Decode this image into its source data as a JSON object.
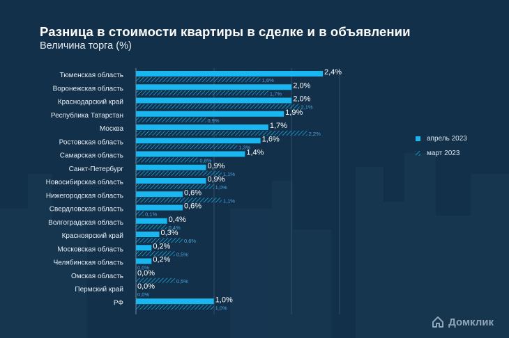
{
  "title": "Разница в стоимости квартиры в сделке и в объявлении",
  "subtitle": "Величина торга (%)",
  "logo_text": "Домклик",
  "colors": {
    "background": "#123049",
    "april": "#1ab6ef",
    "march": "#1ab6ef",
    "text": "#ffffff",
    "march_label": "#4fa3dc"
  },
  "legend": {
    "april": "апрель 2023",
    "march": "март 2023"
  },
  "chart_data": {
    "type": "bar",
    "orientation": "horizontal",
    "categories": [
      "Тюменская область",
      "Воронежская область",
      "Краснодарский край",
      "Республика Татарстан",
      "Москва",
      "Ростовская область",
      "Самарская область",
      "Санкт-Петербург",
      "Новосибирская область",
      "Нижегородская область",
      "Свердловская область",
      "Волгоградская область",
      "Красноярский край",
      "Московская область",
      "Челябинская область",
      "Омская область",
      "Пермский край",
      "РФ"
    ],
    "series": [
      {
        "name": "апрель 2023",
        "values": [
          2.4,
          2.0,
          2.0,
          1.9,
          1.7,
          1.6,
          1.4,
          0.9,
          0.9,
          0.6,
          0.6,
          0.4,
          0.3,
          0.2,
          0.2,
          0.0,
          0.0,
          1.0
        ],
        "labels": [
          "2,4%",
          "2,0%",
          "2,0%",
          "1,9%",
          "1,7%",
          "1,6%",
          "1,4%",
          "0,9%",
          "0,9%",
          "0,6%",
          "0,6%",
          "0,4%",
          "0,3%",
          "0,2%",
          "0,2%",
          "0,0%",
          "0,0%",
          "1,0%"
        ]
      },
      {
        "name": "март 2023",
        "values": [
          1.6,
          1.7,
          2.1,
          0.9,
          2.2,
          1.3,
          0.8,
          1.1,
          1.0,
          1.1,
          0.1,
          0.4,
          0.6,
          0.5,
          0.0,
          0.5,
          0.0,
          1.0
        ],
        "labels": [
          "1,6%",
          "1,7%",
          "2,1%",
          "0,9%",
          "2,2%",
          "1,3%",
          "0,8%",
          "1,1%",
          "1,0%",
          "1,1%",
          "0,1%",
          "0,4%",
          "0,6%",
          "0,5%",
          "0,0%",
          "0,5%",
          "0,0%",
          "1,0%"
        ]
      }
    ],
    "xlim": [
      0,
      2.4
    ],
    "grid": true,
    "legend_position": "right"
  }
}
